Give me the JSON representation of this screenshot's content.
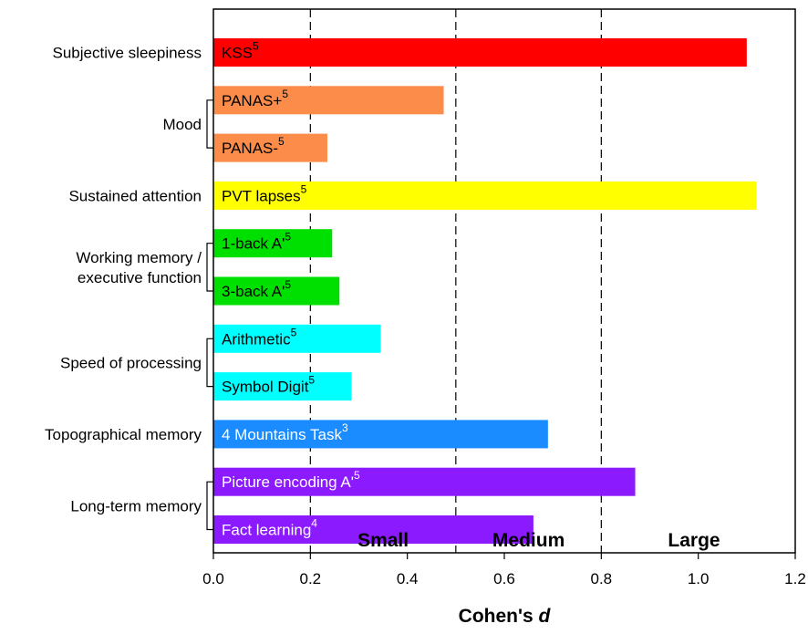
{
  "chart_data": {
    "type": "bar",
    "orientation": "horizontal",
    "xlabel": "Cohen's",
    "xlabel_italic": "d",
    "xlim": [
      0,
      1.2
    ],
    "xticks": [
      "0.0",
      "0.2",
      "0.4",
      "0.6",
      "0.8",
      "1.0",
      "1.2"
    ],
    "thresholds": [
      0.2,
      0.5,
      0.8
    ],
    "effect_zones": [
      {
        "label": "Small",
        "from": 0.2,
        "to": 0.5
      },
      {
        "label": "Medium",
        "from": 0.5,
        "to": 0.8
      },
      {
        "label": "Large",
        "from": 0.8,
        "to": 1.2
      }
    ],
    "groups": [
      {
        "name": "Subjective sleepiness",
        "bars": [
          0
        ]
      },
      {
        "name": "Mood",
        "bars": [
          1,
          2
        ]
      },
      {
        "name": "Sustained attention",
        "bars": [
          3
        ]
      },
      {
        "name": "Working memory /\nexecutive function",
        "bars": [
          4,
          5
        ]
      },
      {
        "name": "Speed of processing",
        "bars": [
          6,
          7
        ]
      },
      {
        "name": "Topographical memory",
        "bars": [
          8
        ]
      },
      {
        "name": "Long-term memory",
        "bars": [
          9,
          10
        ]
      }
    ],
    "bars": [
      {
        "label": "KSS",
        "sup": "5",
        "value": 1.1,
        "color": "#ff0000",
        "text_color": "#000000"
      },
      {
        "label": "PANAS+",
        "sup": "5",
        "value": 0.475,
        "color": "#fb8c4a",
        "text_color": "#000000"
      },
      {
        "label": "PANAS-",
        "sup": "5",
        "value": 0.235,
        "color": "#fb8c4a",
        "text_color": "#000000"
      },
      {
        "label": "PVT lapses",
        "sup": "5",
        "value": 1.12,
        "color": "#ffff00",
        "text_color": "#000000"
      },
      {
        "label": "1-back A'",
        "sup": "5",
        "value": 0.245,
        "color": "#00e000",
        "text_color": "#000000"
      },
      {
        "label": "3-back A'",
        "sup": "5",
        "value": 0.26,
        "color": "#00e000",
        "text_color": "#000000"
      },
      {
        "label": "Arithmetic",
        "sup": "5",
        "value": 0.345,
        "color": "#00ffff",
        "text_color": "#000000"
      },
      {
        "label": "Symbol Digit",
        "sup": "5",
        "value": 0.285,
        "color": "#00ffff",
        "text_color": "#000000"
      },
      {
        "label": "4 Mountains Task",
        "sup": "3",
        "value": 0.69,
        "color": "#1a8cff",
        "text_color": "#ffffff"
      },
      {
        "label": "Picture encoding A'",
        "sup": "5",
        "value": 0.87,
        "color": "#8c1aff",
        "text_color": "#ffffff"
      },
      {
        "label": "Fact learning",
        "sup": "4",
        "value": 0.66,
        "color": "#8c1aff",
        "text_color": "#ffffff"
      }
    ]
  }
}
